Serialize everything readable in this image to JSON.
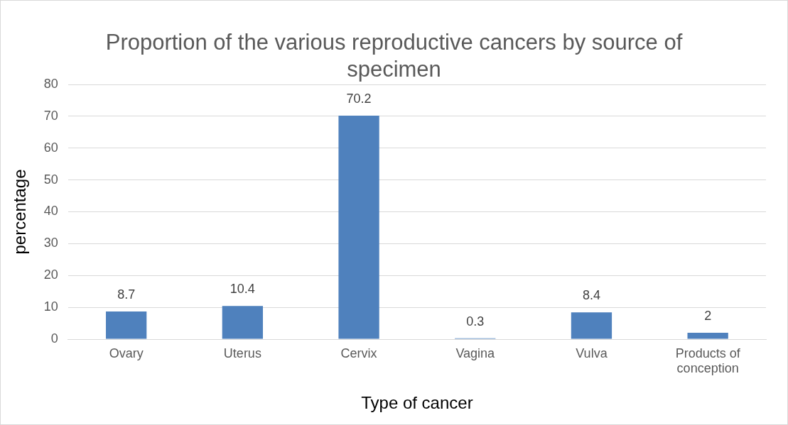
{
  "chart_data": {
    "type": "bar",
    "title": "Proportion of the various reproductive cancers by source of specimen",
    "xlabel": "Type of cancer",
    "ylabel": "percentage",
    "categories": [
      "Ovary",
      "Uterus",
      "Cervix",
      "Vagina",
      "Vulva",
      "Products of conception"
    ],
    "values": [
      8.7,
      10.4,
      70.2,
      0.3,
      8.4,
      2
    ],
    "color": "#4f81bd",
    "ylim": [
      0,
      80
    ],
    "yticks": [
      0,
      10,
      20,
      30,
      40,
      50,
      60,
      70,
      80
    ],
    "grid": "y",
    "data_labels": true,
    "legend": false
  }
}
